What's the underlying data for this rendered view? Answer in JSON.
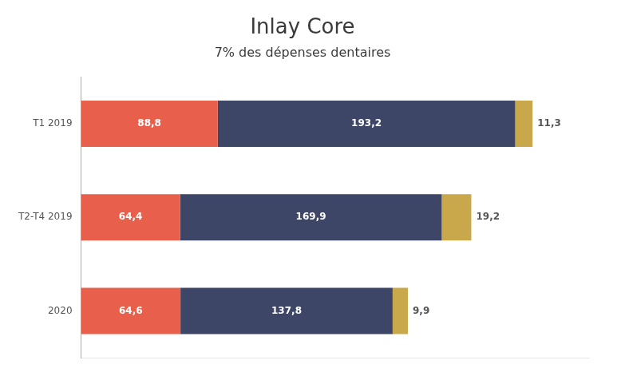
{
  "chart_data": {
    "type": "bar",
    "orientation": "horizontal",
    "stacked": true,
    "title": "Inlay Core",
    "subtitle": "7% des dépenses dentaires",
    "categories": [
      "T1 2019",
      "T2-T4 2019",
      "2020"
    ],
    "series": [
      {
        "color": "#E8604C",
        "values": [
          88.8,
          64.4,
          64.6
        ],
        "value_labels": [
          "88,8",
          "64,4",
          "64,6"
        ]
      },
      {
        "color": "#3D4666",
        "values": [
          193.2,
          169.9,
          137.8
        ],
        "value_labels": [
          "193,2",
          "169,9",
          "137,8"
        ]
      },
      {
        "color": "#C9A84C",
        "values": [
          11.3,
          19.2,
          9.9
        ],
        "value_labels": [
          "11,3",
          "19,2",
          "9,9"
        ]
      }
    ],
    "xlim": [
      0,
      330
    ],
    "data_labels": true,
    "tick_labels": "y",
    "grid": false,
    "legend": null
  }
}
